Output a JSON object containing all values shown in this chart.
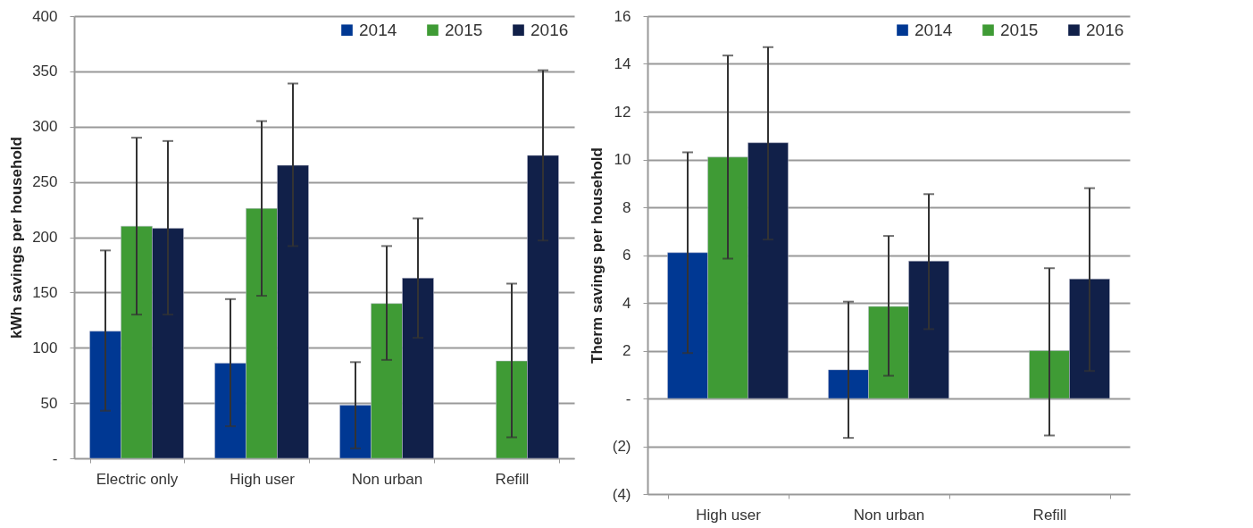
{
  "chart_data": [
    {
      "type": "bar",
      "ylabel": "kWh savings per household",
      "categories": [
        "Electric only",
        "High user",
        "Non urban",
        "Refill"
      ],
      "series": [
        {
          "name": "2014",
          "color": "#003893",
          "values": [
            115,
            86,
            48,
            null
          ],
          "errors": [
            [
              43,
              188
            ],
            [
              29,
              144
            ],
            [
              9,
              87
            ],
            null
          ]
        },
        {
          "name": "2015",
          "color": "#3f9b35",
          "values": [
            210,
            226,
            140,
            88
          ],
          "errors": [
            [
              130,
              290
            ],
            [
              147,
              305
            ],
            [
              89,
              192
            ],
            [
              19,
              158
            ]
          ]
        },
        {
          "name": "2016",
          "color": "#112049",
          "values": [
            208,
            265,
            163,
            274
          ],
          "errors": [
            [
              130,
              287
            ],
            [
              192,
              339
            ],
            [
              109,
              217
            ],
            [
              197,
              351
            ]
          ]
        }
      ],
      "ylim": [
        0,
        400
      ],
      "yticks": [
        {
          "value": 0,
          "label": "-"
        },
        50,
        100,
        150,
        200,
        250,
        300,
        350,
        400
      ],
      "grid": "y",
      "legend": "top right"
    },
    {
      "type": "bar",
      "ylabel": "Therm savings per household",
      "categories": [
        "High user",
        "Non urban",
        "Refill"
      ],
      "series": [
        {
          "name": "2014",
          "color": "#003893",
          "values": [
            6.1,
            1.2,
            null
          ],
          "errors": [
            [
              1.9,
              10.3
            ],
            [
              -1.65,
              4.05
            ],
            null
          ]
        },
        {
          "name": "2015",
          "color": "#3f9b35",
          "values": [
            10.1,
            3.85,
            2.0
          ],
          "errors": [
            [
              5.85,
              14.35
            ],
            [
              0.95,
              6.8
            ],
            [
              -1.55,
              5.45
            ]
          ]
        },
        {
          "name": "2016",
          "color": "#112049",
          "values": [
            10.7,
            5.75,
            5.0
          ],
          "errors": [
            [
              6.65,
              14.7
            ],
            [
              2.9,
              8.55
            ],
            [
              1.15,
              8.8
            ]
          ]
        }
      ],
      "ylim": [
        -4,
        16
      ],
      "yticks": [
        {
          "value": -4,
          "label": "(4)"
        },
        {
          "value": -2,
          "label": "(2)"
        },
        {
          "value": 0,
          "label": "-"
        },
        2,
        4,
        6,
        8,
        10,
        12,
        14,
        16
      ],
      "grid": "y",
      "legend": "top right"
    }
  ]
}
